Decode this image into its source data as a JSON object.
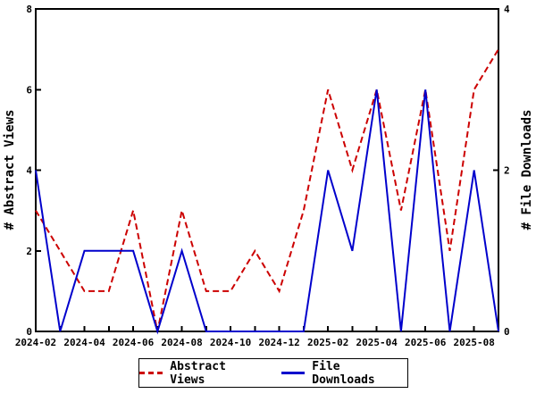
{
  "chart_data": {
    "type": "line",
    "title": "",
    "x": [
      "2024-02",
      "2024-03",
      "2024-04",
      "2024-05",
      "2024-06",
      "2024-07",
      "2024-08",
      "2024-09",
      "2024-10",
      "2024-11",
      "2024-12",
      "2025-01",
      "2025-02",
      "2025-03",
      "2025-04",
      "2025-05",
      "2025-06",
      "2025-07",
      "2025-08",
      "2025-09"
    ],
    "x_tick_labels": [
      "2024-02",
      "2024-04",
      "2024-06",
      "2024-08",
      "2024-10",
      "2024-12",
      "2025-02",
      "2025-04",
      "2025-06",
      "2025-08"
    ],
    "x_label_every": 2,
    "series": [
      {
        "name": "Abstract Views",
        "axis": "left",
        "color": "#cc0000",
        "line_style": "dashed",
        "values": [
          3,
          2,
          1,
          1,
          3,
          0,
          3,
          1,
          1,
          2,
          1,
          3,
          6,
          4,
          6,
          3,
          6,
          2,
          6,
          7
        ]
      },
      {
        "name": "File Downloads",
        "axis": "right",
        "color": "#0000cc",
        "line_style": "solid",
        "values": [
          2,
          0,
          1,
          1,
          1,
          0,
          1,
          0,
          0,
          0,
          0,
          0,
          2,
          1,
          3,
          0,
          3,
          0,
          2,
          0
        ]
      }
    ],
    "left_axis": {
      "label": "# Abstract Views",
      "range": [
        0,
        8
      ],
      "ticks": [
        0,
        2,
        4,
        6,
        8
      ]
    },
    "right_axis": {
      "label": "# File Downloads",
      "range": [
        0,
        4
      ],
      "ticks": [
        0,
        2,
        4
      ]
    },
    "grid": false,
    "legend_position": "bottom-center",
    "background_color": "#ffffff",
    "axis_color": "#000000"
  },
  "legend": {
    "items": [
      {
        "label": "Abstract Views",
        "style": "dashed",
        "color": "#cc0000"
      },
      {
        "label": "File Downloads",
        "style": "solid",
        "color": "#0000cc"
      }
    ]
  }
}
